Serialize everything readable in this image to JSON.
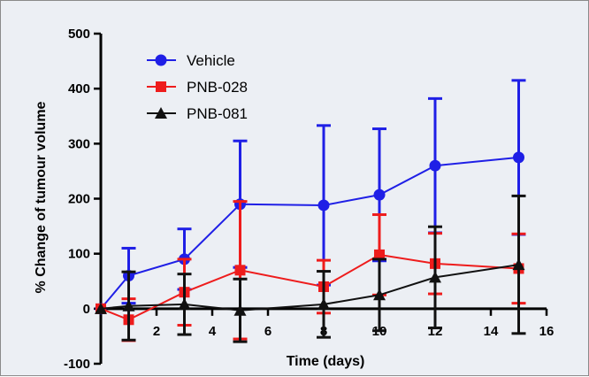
{
  "chart_data": {
    "type": "line",
    "xlabel": "Time (days)",
    "ylabel": "% Change of tumour volume",
    "xlim": [
      0,
      16
    ],
    "ylim": [
      -100,
      500
    ],
    "xticks": [
      2,
      4,
      6,
      8,
      10,
      12,
      14,
      16
    ],
    "yticks": [
      -100,
      0,
      100,
      200,
      300,
      400,
      500
    ],
    "legend_position": "top-left",
    "series": [
      {
        "name": "Vehicle",
        "color": "#1f1fe6",
        "marker": "circle",
        "x": [
          0,
          1,
          3,
          5,
          8,
          10,
          12,
          15
        ],
        "y": [
          0,
          60,
          90,
          190,
          188,
          207,
          260,
          275
        ],
        "err": [
          0,
          50,
          55,
          115,
          145,
          120,
          122,
          140
        ]
      },
      {
        "name": "PNB-028",
        "color": "#ee1c1c",
        "marker": "square",
        "x": [
          0,
          1,
          3,
          5,
          8,
          10,
          12,
          15
        ],
        "y": [
          0,
          -20,
          30,
          70,
          40,
          98,
          82,
          73
        ],
        "err": [
          0,
          38,
          60,
          125,
          48,
          73,
          55,
          63
        ]
      },
      {
        "name": "PNB-081",
        "color": "#111111",
        "marker": "triangle",
        "x": [
          0,
          1,
          3,
          5,
          8,
          10,
          12,
          15
        ],
        "y": [
          0,
          5,
          8,
          -3,
          8,
          25,
          57,
          80
        ],
        "err": [
          0,
          62,
          55,
          57,
          60,
          65,
          92,
          125
        ]
      }
    ]
  }
}
